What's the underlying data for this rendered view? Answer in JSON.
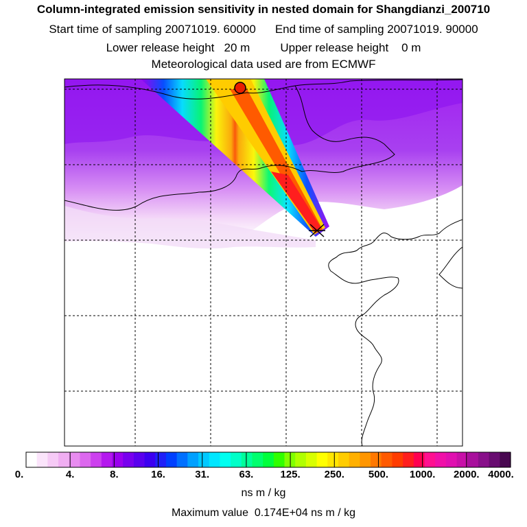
{
  "header": {
    "title": "Column-integrated emission sensitivity in nested domain for Shangdianzi_200710",
    "start_label": "Start time of sampling 20071019. 60000",
    "end_label": "End time of sampling 20071019. 90000",
    "lower_label": "Lower release height   20 m",
    "upper_label": "Upper release height    0 m",
    "met_label": "Meteorological data used are from ECMWF"
  },
  "colorbar": {
    "tick_labels": [
      "0.",
      "4.",
      "8.",
      "16.",
      "31.",
      "63.",
      "125.",
      "250.",
      "500.",
      "1000.",
      "2000.",
      "4000."
    ],
    "units": "ns m / kg",
    "colors": [
      "#ffffff",
      "#fbe4fb",
      "#f6caf6",
      "#f0aef2",
      "#e88cf0",
      "#dc68ee",
      "#cc40ee",
      "#b418ee",
      "#9a00ee",
      "#7800ee",
      "#5a00ee",
      "#3c00f0",
      "#2020f8",
      "#0040ff",
      "#0070ff",
      "#00a0ff",
      "#00c8ff",
      "#00e6ff",
      "#00fff0",
      "#00ffc8",
      "#00ff9a",
      "#00ff6e",
      "#00ff3c",
      "#30ff00",
      "#80ff00",
      "#b0ff00",
      "#d8ff00",
      "#ffff00",
      "#ffe600",
      "#ffcc00",
      "#ffb000",
      "#ff9600",
      "#ff7800",
      "#ff5a00",
      "#ff3c00",
      "#ff1e1e",
      "#ff0050",
      "#ff1090",
      "#f010a8",
      "#e010b0",
      "#c810a8",
      "#a8109c",
      "#88108a",
      "#680c70",
      "#480850"
    ]
  },
  "footer": {
    "max_label": "Maximum value  0.174E+04 ns m / kg"
  },
  "markers": {
    "receptor_color": "#e82000",
    "receptor_name": "receptor-marker"
  }
}
